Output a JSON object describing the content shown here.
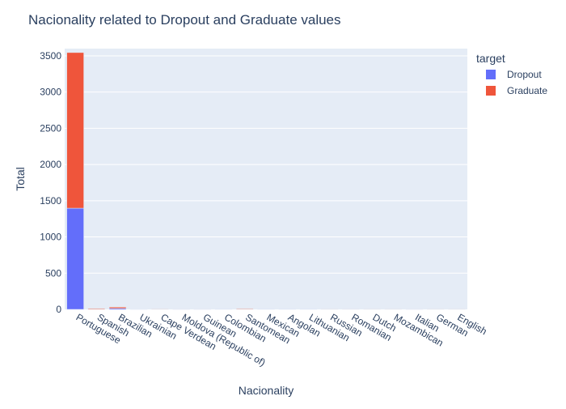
{
  "chart_data": {
    "type": "bar",
    "barmode": "stack",
    "title": "Nacionality related to Dropout and Graduate values",
    "xlabel": "Nacionality",
    "ylabel": "Total",
    "ylim": [
      0,
      3600
    ],
    "yticks": [
      0,
      500,
      1000,
      1500,
      2000,
      2500,
      3000,
      3500
    ],
    "categories": [
      "Portuguese",
      "Spanish",
      "Brazilian",
      "Ukrainian",
      "Cape Verdean",
      "Moldova (Republic of)",
      "Guinean",
      "Colombian",
      "Santomean",
      "Mexican",
      "Angolan",
      "Lithuanian",
      "Russian",
      "Romanian",
      "Dutch",
      "Mozambican",
      "Italian",
      "German",
      "English"
    ],
    "series": [
      {
        "name": "Dropout",
        "color": "#636efa",
        "values": [
          1397,
          3,
          14,
          1,
          4,
          1,
          1,
          1,
          5,
          1,
          1,
          1,
          0,
          0,
          0,
          0,
          1,
          0,
          0
        ]
      },
      {
        "name": "Graduate",
        "color": "#ef553b",
        "values": [
          2148,
          10,
          18,
          2,
          6,
          1,
          1,
          0,
          8,
          0,
          0,
          0,
          1,
          2,
          1,
          1,
          1,
          1,
          1
        ]
      }
    ],
    "legend": {
      "title": "target",
      "position": "top-right"
    },
    "grid": true,
    "plot_bg": "#e5ecf6",
    "text_color": "#2a3f5f"
  }
}
